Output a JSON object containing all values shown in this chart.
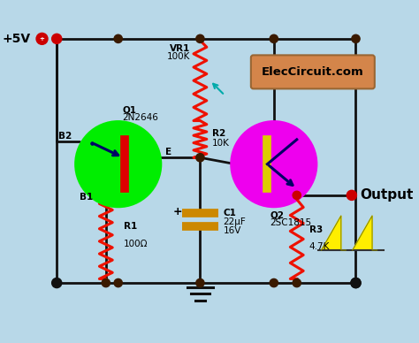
{
  "bg_color": "#b8d8e8",
  "wire_color": "#111111",
  "vr1_label": "VR1",
  "vr1_val": "100K",
  "r2_label": "R2",
  "r2_val": "10K",
  "r1_label": "R1",
  "r1_val": "100Ω",
  "r3_label": "R3",
  "r3_val": "4.7K",
  "c1_label": "C1",
  "c1_val": "22μF",
  "c1_val2": "16V",
  "q1_label": "Q1",
  "q1_sub": "2N2646",
  "q2_label": "Q2",
  "q2_sub": "2SC1815",
  "b1_label": "B1",
  "b2_label": "B2",
  "e_label": "E",
  "vcc_label": "+5V",
  "output_label": "Output",
  "brand_label": "ElecCircuit.com",
  "ujt_color": "#00ee00",
  "bjt_color": "#ee00ee",
  "resistor_color": "#ee1100",
  "node_color": "#3a1a00",
  "vcc_dot_color": "#cc0000",
  "output_dot_color": "#cc0000",
  "brand_bg": "#d4854a",
  "cap_color": "#cc8800",
  "cap_fill": "#cc8800",
  "sawtooth_color": "#ffee00",
  "wire_lw": 2.0,
  "res_lw": 2.2,
  "circle_lw": 2.0
}
